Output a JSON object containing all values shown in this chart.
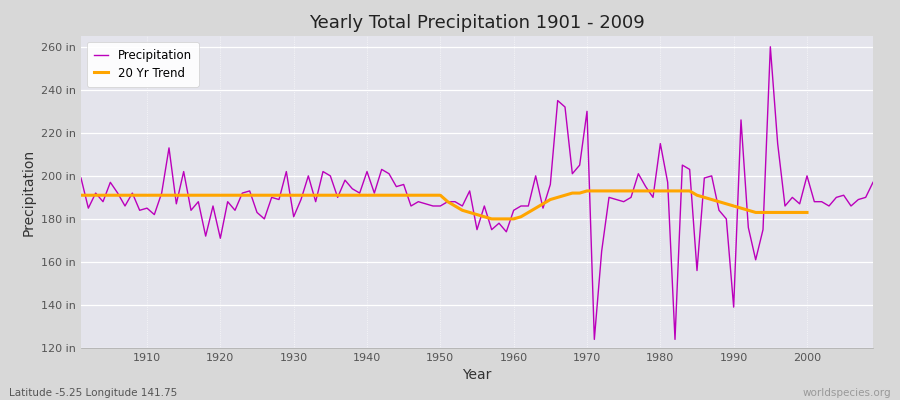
{
  "title": "Yearly Total Precipitation 1901 - 2009",
  "xlabel": "Year",
  "ylabel": "Precipitation",
  "subtitle": "Latitude -5.25 Longitude 141.75",
  "watermark": "worldspecies.org",
  "ylim": [
    120,
    265
  ],
  "yticks": [
    120,
    140,
    160,
    180,
    200,
    220,
    240,
    260
  ],
  "ytick_labels": [
    "120 in",
    "140 in",
    "160 in",
    "180 in",
    "200 in",
    "220 in",
    "240 in",
    "260 in"
  ],
  "xlim": [
    1901,
    2009
  ],
  "xticks": [
    1910,
    1920,
    1930,
    1940,
    1950,
    1960,
    1970,
    1980,
    1990,
    2000
  ],
  "bg_color": "#d8d8d8",
  "plot_bg_color": "#e4e4ec",
  "precip_color": "#bb00bb",
  "trend_color": "#ffa500",
  "precip_label": "Precipitation",
  "trend_label": "20 Yr Trend",
  "years": [
    1901,
    1902,
    1903,
    1904,
    1905,
    1906,
    1907,
    1908,
    1909,
    1910,
    1911,
    1912,
    1913,
    1914,
    1915,
    1916,
    1917,
    1918,
    1919,
    1920,
    1921,
    1922,
    1923,
    1924,
    1925,
    1926,
    1927,
    1928,
    1929,
    1930,
    1931,
    1932,
    1933,
    1934,
    1935,
    1936,
    1937,
    1938,
    1939,
    1940,
    1941,
    1942,
    1943,
    1944,
    1945,
    1946,
    1947,
    1948,
    1949,
    1950,
    1951,
    1952,
    1953,
    1954,
    1955,
    1956,
    1957,
    1958,
    1959,
    1960,
    1961,
    1962,
    1963,
    1964,
    1965,
    1966,
    1967,
    1968,
    1969,
    1970,
    1971,
    1972,
    1973,
    1974,
    1975,
    1976,
    1977,
    1978,
    1979,
    1980,
    1981,
    1982,
    1983,
    1984,
    1985,
    1986,
    1987,
    1988,
    1989,
    1990,
    1991,
    1992,
    1993,
    1994,
    1995,
    1996,
    1997,
    1998,
    1999,
    2000,
    2001,
    2002,
    2003,
    2004,
    2005,
    2006,
    2007,
    2008,
    2009
  ],
  "precip": [
    199,
    185,
    192,
    188,
    197,
    192,
    186,
    192,
    184,
    185,
    182,
    192,
    213,
    187,
    202,
    184,
    188,
    172,
    186,
    171,
    188,
    184,
    192,
    193,
    183,
    180,
    190,
    189,
    202,
    181,
    189,
    200,
    188,
    202,
    200,
    190,
    198,
    194,
    192,
    202,
    192,
    203,
    201,
    195,
    196,
    186,
    188,
    187,
    186,
    186,
    188,
    188,
    186,
    193,
    175,
    186,
    175,
    178,
    174,
    184,
    186,
    186,
    200,
    185,
    196,
    235,
    232,
    201,
    205,
    230,
    124,
    165,
    190,
    189,
    188,
    190,
    201,
    195,
    190,
    215,
    197,
    124,
    205,
    203,
    156,
    199,
    200,
    184,
    180,
    139,
    226,
    176,
    161,
    175,
    260,
    215,
    186,
    190,
    187,
    200,
    188,
    188,
    186,
    190,
    191,
    186,
    189,
    190,
    197
  ],
  "trend": [
    191,
    191,
    191,
    191,
    191,
    191,
    191,
    191,
    191,
    191,
    191,
    191,
    191,
    191,
    191,
    191,
    191,
    191,
    191,
    191,
    191,
    191,
    191,
    191,
    191,
    191,
    191,
    191,
    191,
    191,
    191,
    191,
    191,
    191,
    191,
    191,
    191,
    191,
    191,
    191,
    191,
    191,
    191,
    191,
    191,
    191,
    191,
    191,
    191,
    191,
    188,
    186,
    184,
    183,
    182,
    181,
    180,
    180,
    180,
    180,
    181,
    183,
    185,
    187,
    189,
    190,
    191,
    192,
    192,
    193,
    193,
    193,
    193,
    193,
    193,
    193,
    193,
    193,
    193,
    193,
    193,
    193,
    193,
    193,
    191,
    190,
    189,
    188,
    187,
    186,
    185,
    184,
    183,
    183,
    183,
    183,
    183,
    183,
    183,
    183,
    null,
    null,
    null,
    null,
    null,
    null,
    null,
    null,
    null
  ]
}
